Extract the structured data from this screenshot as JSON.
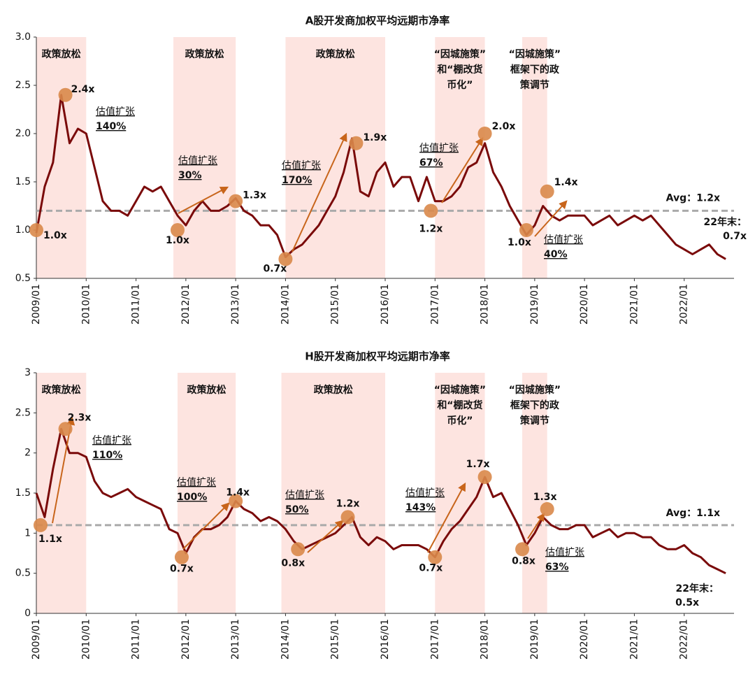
{
  "chart_data": [
    {
      "type": "line",
      "title": "A股开发商加权平均远期市净率",
      "color": "#7a0a0a",
      "xlim": [
        "2009/01",
        "2023/01"
      ],
      "xticks": [
        "2009/01",
        "2010/01",
        "2011/01",
        "2012/01",
        "2013/01",
        "2014/01",
        "2015/01",
        "2016/01",
        "2017/01",
        "2018/01",
        "2019/01",
        "2020/01",
        "2021/01",
        "2022/01"
      ],
      "ylim": [
        0.5,
        3
      ],
      "yticks": [
        {
          "value": 0.5,
          "label": "0.5"
        },
        {
          "value": 1,
          "label": "1.0"
        },
        {
          "value": 1.5,
          "label": "1.5"
        },
        {
          "value": 2,
          "label": "2.0"
        },
        {
          "value": 2.5,
          "label": "2.5"
        },
        {
          "value": 3,
          "label": "3.0"
        }
      ],
      "x": [
        "2009/01",
        "2009/03",
        "2009/05",
        "2009/07",
        "2009/09",
        "2009/11",
        "2010/01",
        "2010/03",
        "2010/05",
        "2010/07",
        "2010/09",
        "2010/11",
        "2011/01",
        "2011/03",
        "2011/05",
        "2011/07",
        "2011/09",
        "2011/11",
        "2012/01",
        "2012/03",
        "2012/05",
        "2012/07",
        "2012/09",
        "2012/11",
        "2013/01",
        "2013/03",
        "2013/05",
        "2013/07",
        "2013/09",
        "2013/11",
        "2014/01",
        "2014/03",
        "2014/05",
        "2014/07",
        "2014/09",
        "2014/11",
        "2015/01",
        "2015/03",
        "2015/05",
        "2015/07",
        "2015/09",
        "2015/11",
        "2016/01",
        "2016/03",
        "2016/05",
        "2016/07",
        "2016/09",
        "2016/11",
        "2017/01",
        "2017/03",
        "2017/05",
        "2017/07",
        "2017/09",
        "2017/11",
        "2018/01",
        "2018/03",
        "2018/05",
        "2018/07",
        "2018/09",
        "2018/11",
        "2019/01",
        "2019/03",
        "2019/05",
        "2019/07",
        "2019/09",
        "2019/11",
        "2020/01",
        "2020/03",
        "2020/05",
        "2020/07",
        "2020/09",
        "2020/11",
        "2021/01",
        "2021/03",
        "2021/05",
        "2021/07",
        "2021/09",
        "2021/11",
        "2022/01",
        "2022/03",
        "2022/05",
        "2022/07",
        "2022/09",
        "2022/11"
      ],
      "values": [
        0.97,
        1.45,
        1.7,
        2.4,
        1.9,
        2.05,
        2.0,
        1.65,
        1.3,
        1.2,
        1.2,
        1.15,
        1.3,
        1.45,
        1.4,
        1.45,
        1.3,
        1.15,
        1.05,
        1.2,
        1.3,
        1.2,
        1.2,
        1.25,
        1.33,
        1.2,
        1.15,
        1.05,
        1.05,
        0.95,
        0.72,
        0.8,
        0.85,
        0.95,
        1.05,
        1.2,
        1.35,
        1.6,
        1.95,
        1.4,
        1.35,
        1.6,
        1.7,
        1.45,
        1.55,
        1.55,
        1.3,
        1.55,
        1.3,
        1.3,
        1.35,
        1.45,
        1.65,
        1.7,
        1.9,
        1.6,
        1.45,
        1.25,
        1.1,
        0.95,
        1.05,
        1.25,
        1.15,
        1.1,
        1.15,
        1.15,
        1.15,
        1.05,
        1.1,
        1.15,
        1.05,
        1.1,
        1.15,
        1.1,
        1.15,
        1.05,
        0.95,
        0.85,
        0.8,
        0.75,
        0.8,
        0.85,
        0.75,
        0.7
      ],
      "average": {
        "value": 1.2,
        "label": "Avg：1.2x"
      },
      "periods": [
        {
          "start": "2009/01",
          "end": "2010/01",
          "label": [
            "政策放松"
          ]
        },
        {
          "start": "2011/10",
          "end": "2013/01",
          "label": [
            "政策放松"
          ]
        },
        {
          "start": "2014/01",
          "end": "2016/01",
          "label": [
            "政策放松"
          ]
        },
        {
          "start": "2017/01",
          "end": "2018/01",
          "label": [
            "“因城施策”",
            "和“棚改货",
            "币化”"
          ]
        },
        {
          "start": "2018/10",
          "end": "2019/04",
          "label": [
            "“因城施策”",
            "框架下的政",
            "策调节"
          ]
        }
      ],
      "markers": [
        {
          "x": "2009/01",
          "value": 1.0,
          "label": "1.0x"
        },
        {
          "x": "2009/08",
          "value": 2.4,
          "label": "2.4x"
        },
        {
          "x": "2011/11",
          "value": 1.0,
          "label": "1.0x"
        },
        {
          "x": "2013/01",
          "value": 1.3,
          "label": "1.3x"
        },
        {
          "x": "2014/01",
          "value": 0.7,
          "label": "0.7x"
        },
        {
          "x": "2015/06",
          "value": 1.9,
          "label": "1.9x"
        },
        {
          "x": "2016/12",
          "value": 1.2,
          "label": "1.2x"
        },
        {
          "x": "2018/01",
          "value": 2.0,
          "label": "2.0x"
        },
        {
          "x": "2018/11",
          "value": 1.0,
          "label": "1.0x"
        },
        {
          "x": "2019/04",
          "value": 1.4,
          "label": "1.4x"
        }
      ],
      "expansions": [
        {
          "label": "估值扩张",
          "value": 140,
          "value_label": "140%"
        },
        {
          "label": "估值扩张",
          "value": 30,
          "value_label": "30%"
        },
        {
          "label": "估值扩张",
          "value": 170,
          "value_label": "170%"
        },
        {
          "label": "估值扩张",
          "value": 67,
          "value_label": "67%"
        },
        {
          "label": "估值扩张",
          "value": 40,
          "value_label": "40%"
        }
      ],
      "year_end": {
        "label": "22年末：",
        "value": 0.7,
        "value_label": "0.7x"
      }
    },
    {
      "type": "line",
      "title": "H股开发商加权平均远期市净率",
      "color": "#7a0a0a",
      "xlim": [
        "2009/01",
        "2023/01"
      ],
      "xticks": [
        "2009/01",
        "2010/01",
        "2011/01",
        "2012/01",
        "2013/01",
        "2014/01",
        "2015/01",
        "2016/01",
        "2017/01",
        "2018/01",
        "2019/01",
        "2020/01",
        "2021/01",
        "2022/01"
      ],
      "ylim": [
        0,
        3
      ],
      "yticks": [
        0,
        0.5,
        1,
        1.5,
        2,
        2.5,
        3
      ],
      "x": [
        "2009/01",
        "2009/03",
        "2009/05",
        "2009/07",
        "2009/09",
        "2009/11",
        "2010/01",
        "2010/03",
        "2010/05",
        "2010/07",
        "2010/09",
        "2010/11",
        "2011/01",
        "2011/03",
        "2011/05",
        "2011/07",
        "2011/09",
        "2011/11",
        "2012/01",
        "2012/03",
        "2012/05",
        "2012/07",
        "2012/09",
        "2012/11",
        "2013/01",
        "2013/03",
        "2013/05",
        "2013/07",
        "2013/09",
        "2013/11",
        "2014/01",
        "2014/03",
        "2014/05",
        "2014/07",
        "2014/09",
        "2014/11",
        "2015/01",
        "2015/03",
        "2015/05",
        "2015/07",
        "2015/09",
        "2015/11",
        "2016/01",
        "2016/03",
        "2016/05",
        "2016/07",
        "2016/09",
        "2016/11",
        "2017/01",
        "2017/03",
        "2017/05",
        "2017/07",
        "2017/09",
        "2017/11",
        "2018/01",
        "2018/03",
        "2018/05",
        "2018/07",
        "2018/09",
        "2018/11",
        "2019/01",
        "2019/03",
        "2019/05",
        "2019/07",
        "2019/09",
        "2019/11",
        "2020/01",
        "2020/03",
        "2020/05",
        "2020/07",
        "2020/09",
        "2020/11",
        "2021/01",
        "2021/03",
        "2021/05",
        "2021/07",
        "2021/09",
        "2021/11",
        "2022/01",
        "2022/03",
        "2022/05",
        "2022/07",
        "2022/09",
        "2022/11"
      ],
      "values": [
        1.5,
        1.2,
        1.8,
        2.3,
        2.0,
        2.0,
        1.95,
        1.65,
        1.5,
        1.45,
        1.5,
        1.55,
        1.45,
        1.4,
        1.35,
        1.3,
        1.05,
        1.0,
        0.75,
        0.95,
        1.05,
        1.05,
        1.1,
        1.2,
        1.4,
        1.3,
        1.25,
        1.15,
        1.2,
        1.15,
        1.05,
        0.9,
        0.8,
        0.85,
        0.9,
        0.95,
        1.0,
        1.1,
        1.2,
        0.95,
        0.85,
        0.95,
        0.9,
        0.8,
        0.85,
        0.85,
        0.85,
        0.8,
        0.7,
        0.9,
        1.05,
        1.15,
        1.3,
        1.45,
        1.7,
        1.45,
        1.5,
        1.3,
        1.1,
        0.85,
        1.0,
        1.2,
        1.1,
        1.05,
        1.05,
        1.1,
        1.1,
        0.95,
        1.0,
        1.05,
        0.95,
        1.0,
        1.0,
        0.95,
        0.95,
        0.85,
        0.8,
        0.8,
        0.85,
        0.75,
        0.7,
        0.6,
        0.55,
        0.5
      ],
      "average": {
        "value": 1.1,
        "label": "Avg：1.1x"
      },
      "periods": [
        {
          "start": "2009/01",
          "end": "2010/01",
          "label": [
            "政策放松"
          ]
        },
        {
          "start": "2011/11",
          "end": "2013/01",
          "label": [
            "政策放松"
          ]
        },
        {
          "start": "2013/12",
          "end": "2016/01",
          "label": [
            "政策放松"
          ]
        },
        {
          "start": "2017/01",
          "end": "2018/01",
          "label": [
            "“因城施策”",
            "和“棚改货",
            "币化”"
          ]
        },
        {
          "start": "2018/10",
          "end": "2019/04",
          "label": [
            "“因城施策”",
            "框架下的政",
            "策调节"
          ]
        }
      ],
      "markers": [
        {
          "x": "2009/02",
          "value": 1.1,
          "label": "1.1x"
        },
        {
          "x": "2009/08",
          "value": 2.3,
          "label": "2.3x"
        },
        {
          "x": "2011/12",
          "value": 0.7,
          "label": "0.7x"
        },
        {
          "x": "2013/01",
          "value": 1.4,
          "label": "1.4x"
        },
        {
          "x": "2014/04",
          "value": 0.8,
          "label": "0.8x"
        },
        {
          "x": "2015/04",
          "value": 1.2,
          "label": "1.2x"
        },
        {
          "x": "2017/01",
          "value": 0.7,
          "label": "0.7x"
        },
        {
          "x": "2018/01",
          "value": 1.7,
          "label": "1.7x"
        },
        {
          "x": "2018/10",
          "value": 0.8,
          "label": "0.8x"
        },
        {
          "x": "2019/04",
          "value": 1.3,
          "label": "1.3x"
        }
      ],
      "expansions": [
        {
          "label": "估值扩张",
          "value": 110,
          "value_label": "110%"
        },
        {
          "label": "估值扩张",
          "value": 100,
          "value_label": "100%"
        },
        {
          "label": "估值扩张",
          "value": 50,
          "value_label": "50%"
        },
        {
          "label": "估值扩张",
          "value": 143,
          "value_label": "143%"
        },
        {
          "label": "估值扩张",
          "value": 63,
          "value_label": "63%"
        }
      ],
      "year_end": {
        "label": "22年末：",
        "value": 0.5,
        "value_label": "0.5x"
      }
    }
  ]
}
